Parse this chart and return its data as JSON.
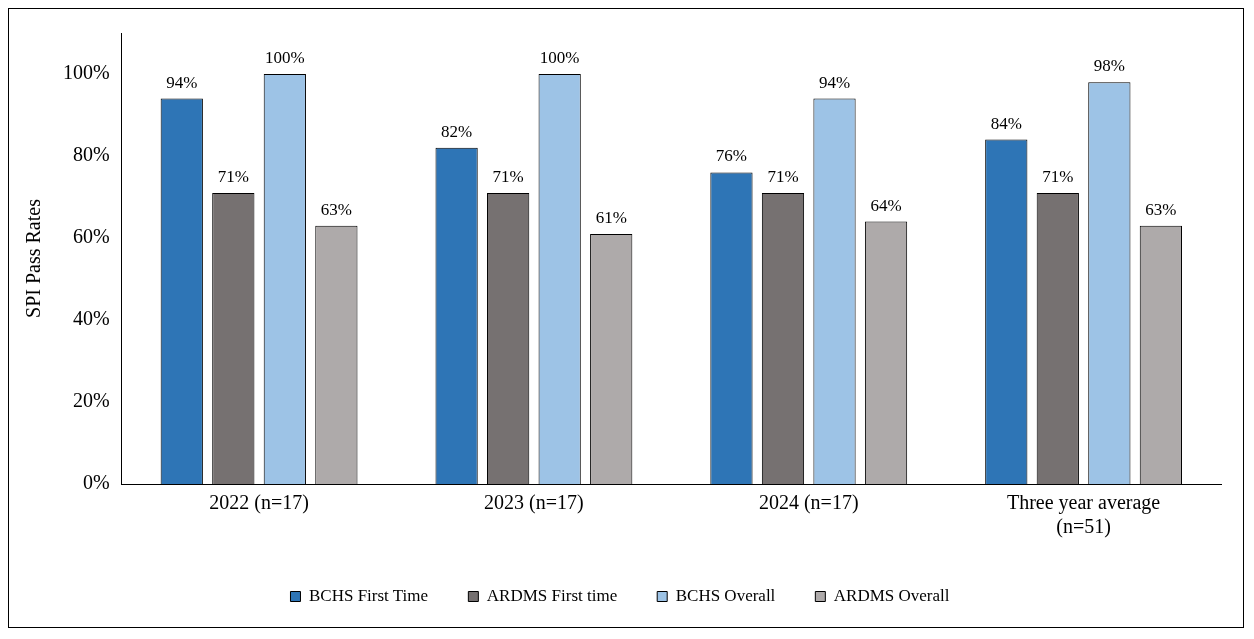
{
  "chart_data": {
    "type": "bar",
    "ylabel": "SPI Pass Rates",
    "categories": [
      "2022 (n=17)",
      "2023 (n=17)",
      "2024 (n=17)",
      "Three year average\n(n=51)"
    ],
    "series": [
      {
        "name": "BCHS First Time",
        "color": "#2e75b6",
        "values": [
          94,
          82,
          76,
          84
        ],
        "value_labels": [
          "94%",
          "82%",
          "76%",
          "84%"
        ]
      },
      {
        "name": "ARDMS First time",
        "color": "#767171",
        "values": [
          71,
          71,
          71,
          71
        ],
        "value_labels": [
          "71%",
          "71%",
          "71%",
          "71%"
        ]
      },
      {
        "name": "BCHS Overall",
        "color": "#9dc3e6",
        "values": [
          100,
          100,
          94,
          98
        ],
        "value_labels": [
          "100%",
          "100%",
          "94%",
          "98%"
        ]
      },
      {
        "name": "ARDMS Overall",
        "color": "#aeaaaa",
        "values": [
          63,
          61,
          64,
          63
        ],
        "value_labels": [
          "63%",
          "61%",
          "64%",
          "63%"
        ]
      }
    ],
    "ylim": [
      0,
      110
    ],
    "yticks": [
      {
        "value": 0,
        "label": "0%"
      },
      {
        "value": 20,
        "label": "20%"
      },
      {
        "value": 40,
        "label": "40%"
      },
      {
        "value": 60,
        "label": "60%"
      },
      {
        "value": 80,
        "label": "80%"
      },
      {
        "value": 100,
        "label": "100%"
      }
    ],
    "grid": false,
    "legend": "bottom"
  }
}
